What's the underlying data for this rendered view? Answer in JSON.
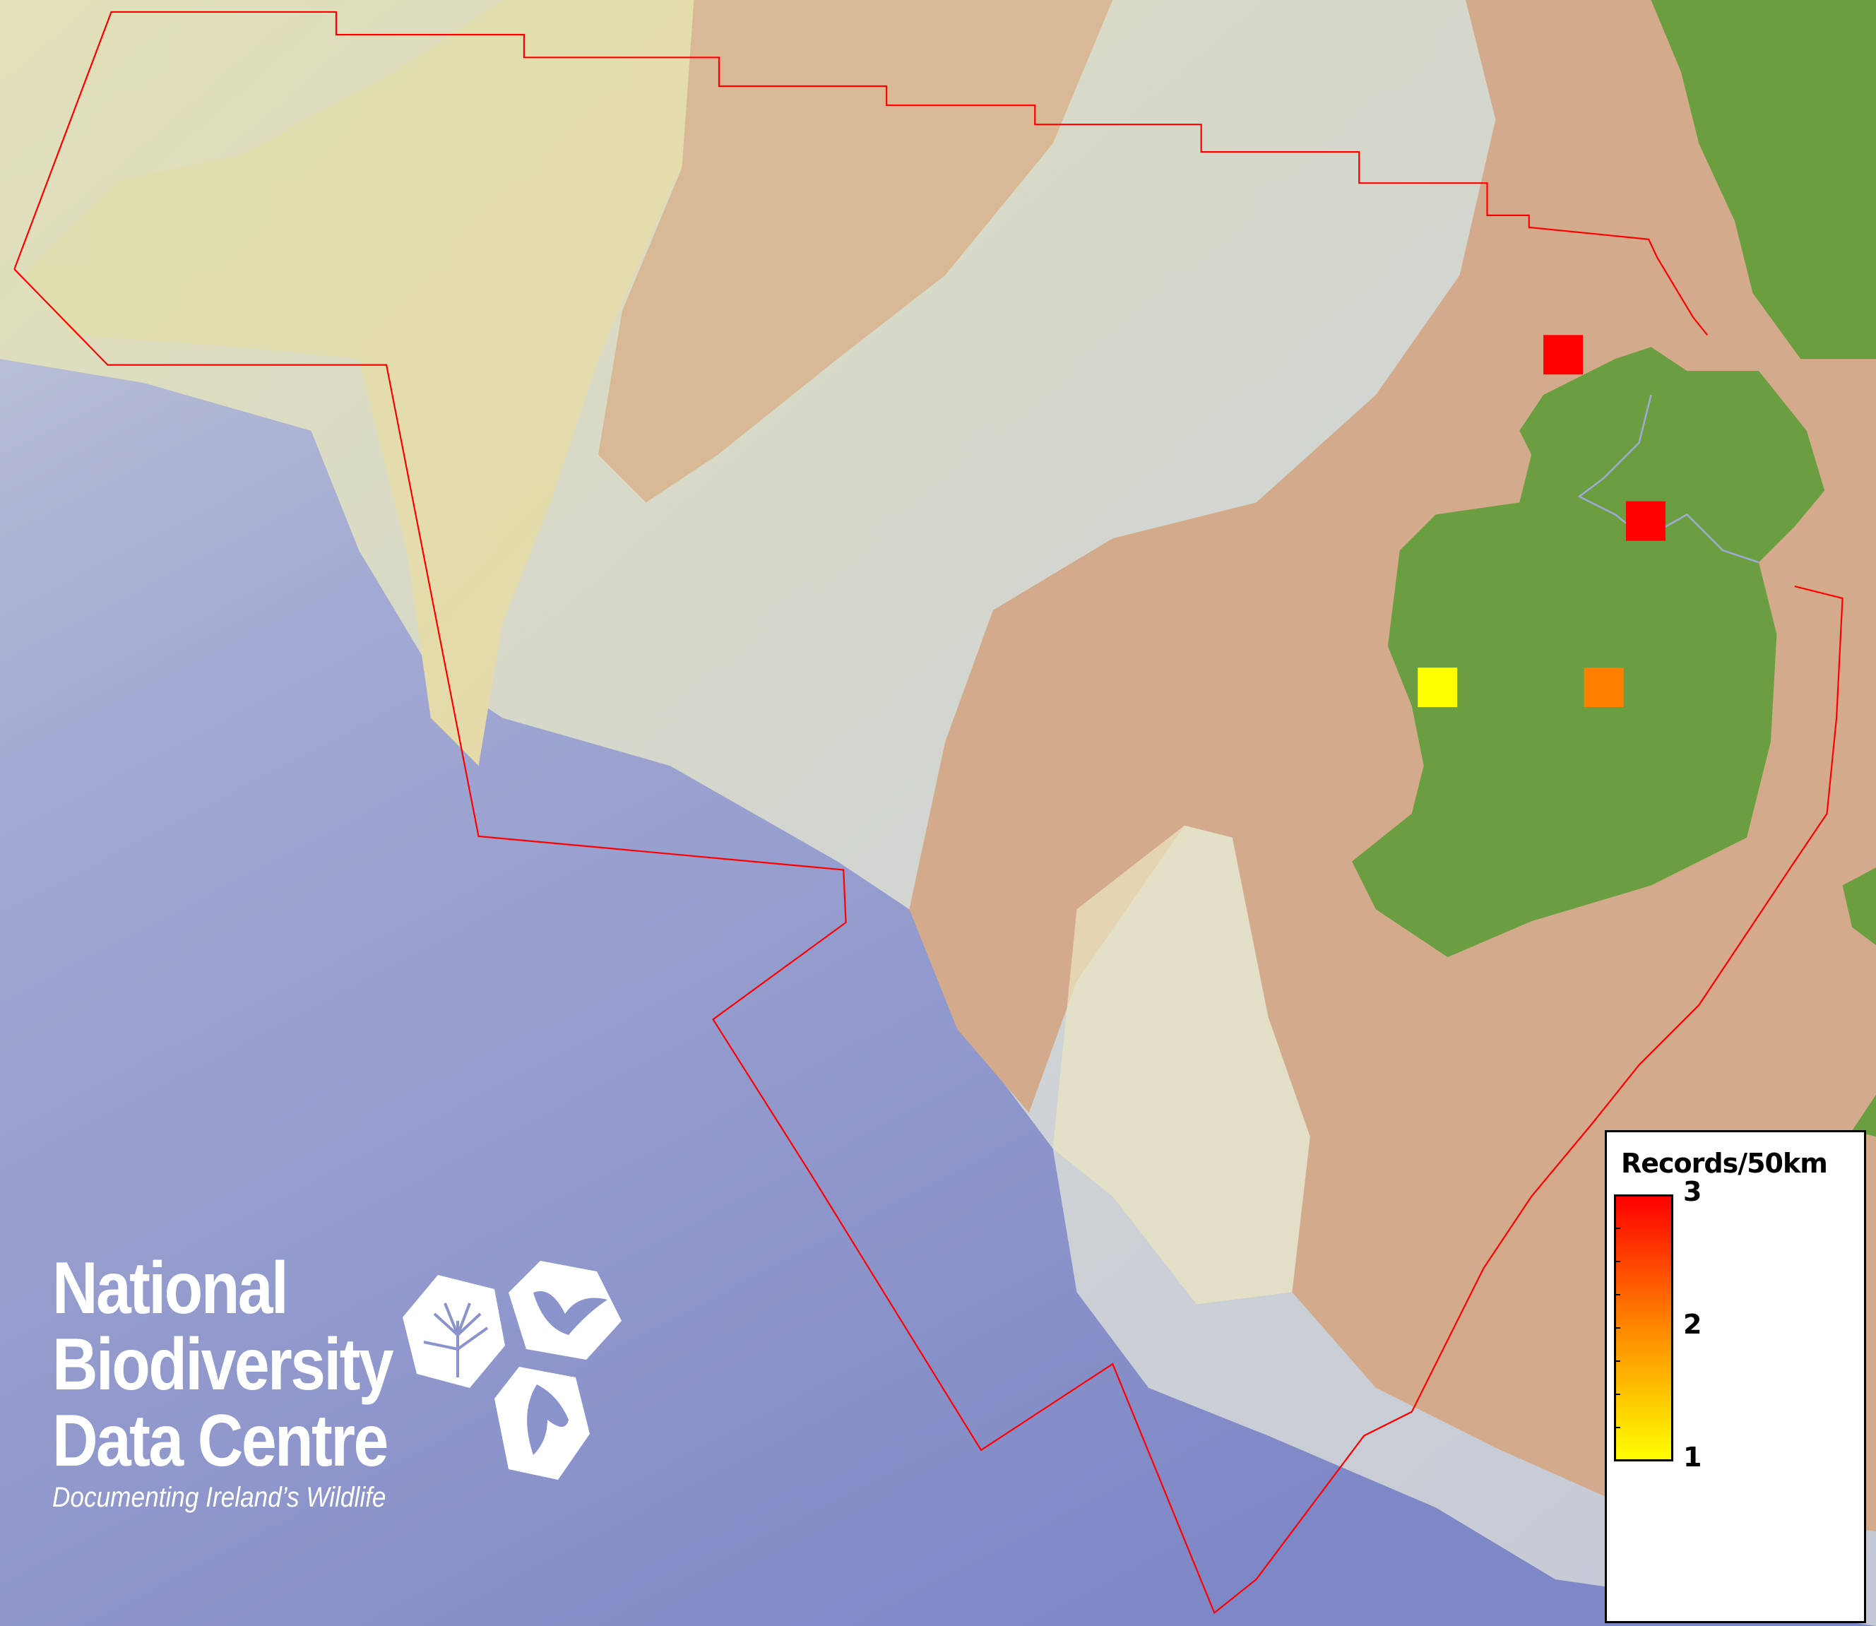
{
  "legend": {
    "title": "Records/50km",
    "max_label": "3",
    "mid_label": "2",
    "min_label": "1",
    "color_min": "#ffff00",
    "color_mid": "#ff8800",
    "color_max": "#ff0000"
  },
  "logo": {
    "line1": "National",
    "line2": "Biodiversity",
    "line3": "Data Centre",
    "tagline": "Documenting Ireland’s Wildlife",
    "icons": [
      "plant-icon",
      "butterfly-icon",
      "seahorse-icon"
    ]
  },
  "records": [
    {
      "cell": "north-coast",
      "value": 3,
      "color": "#ff0000"
    },
    {
      "cell": "north-inland",
      "value": 3,
      "color": "#ff0000"
    },
    {
      "cell": "west-coast",
      "value": 1,
      "color": "#ffff00"
    },
    {
      "cell": "midlands",
      "value": 2,
      "color": "#ff8000"
    }
  ],
  "colors": {
    "deep_sea": "#8590c8",
    "shelf_pale": "#d8dcc8",
    "shelf_yellow": "#e4dfae",
    "shelf_tan": "#d5ab8e",
    "land": "#6a9e3f",
    "boundary": "#ff0000"
  }
}
